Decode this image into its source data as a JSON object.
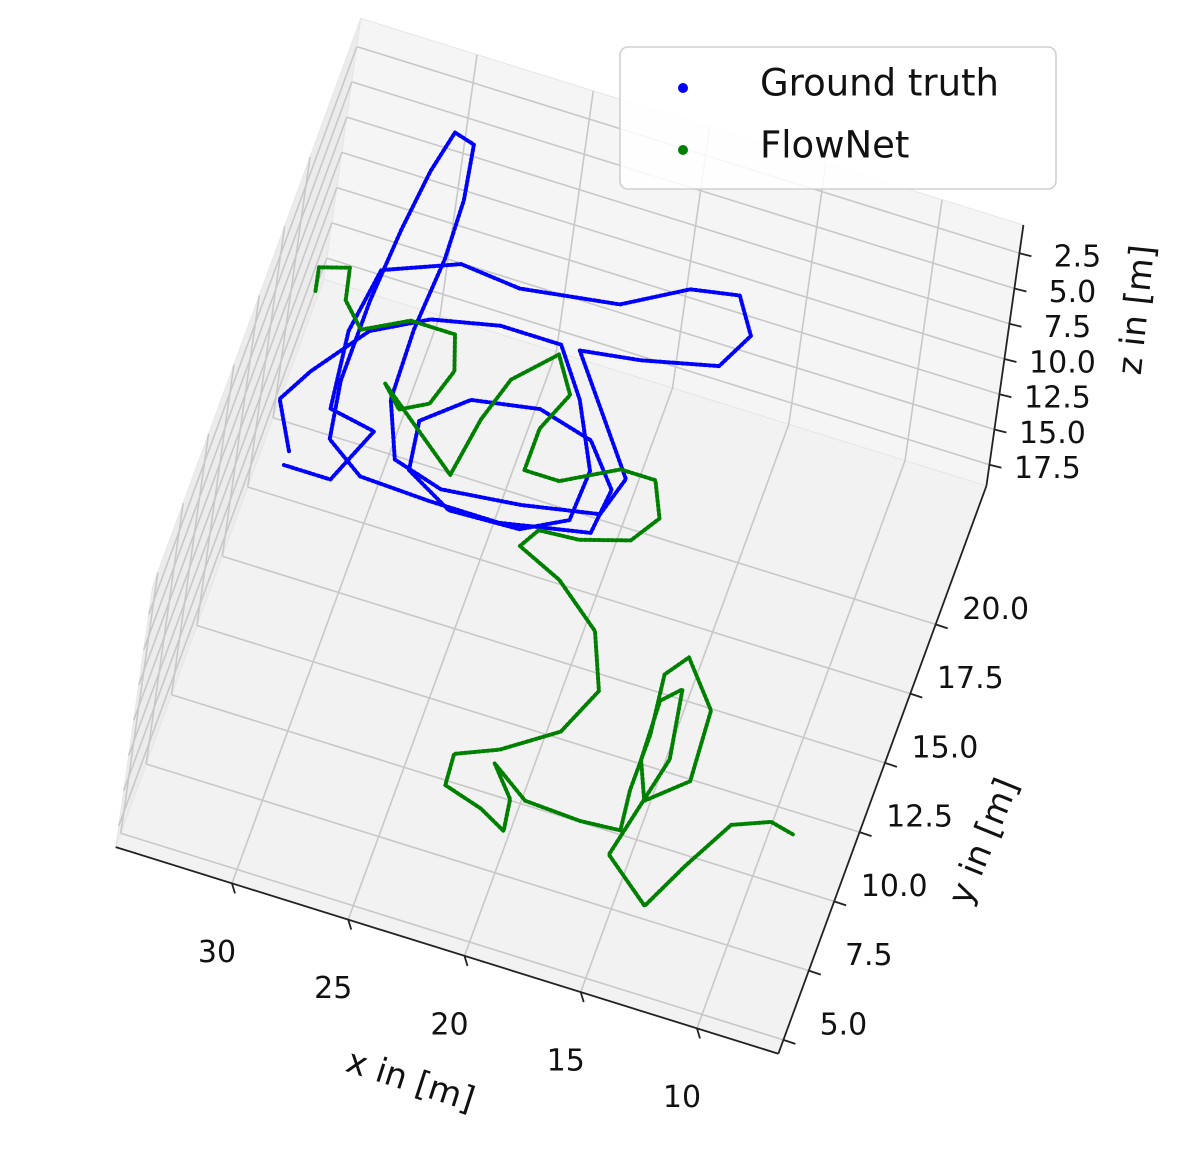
{
  "chart_data": {
    "type": "scatter3d",
    "xlabel": "x in [m]",
    "ylabel": "y in [m]",
    "zlabel": "z in [m]",
    "xlim": [
      6.5,
      35
    ],
    "ylim": [
      4.5,
      25
    ],
    "zlim": [
      19,
      0.5
    ],
    "xticks": [
      10,
      15,
      20,
      25,
      30
    ],
    "yticks": [
      {
        "value": 5,
        "label": "5.0"
      },
      7.5,
      {
        "value": 10,
        "label": "10.0"
      },
      12.5,
      {
        "value": 15,
        "label": "15.0"
      },
      17.5,
      {
        "value": 20,
        "label": "20.0"
      }
    ],
    "zticks": [
      2.5,
      {
        "value": 5,
        "label": "5.0"
      },
      7.5,
      {
        "value": 10,
        "label": "10.0"
      },
      12.5,
      {
        "value": 15,
        "label": "15.0"
      },
      17.5
    ],
    "grid": true,
    "legend": "upper right",
    "series": [
      {
        "name": "Ground truth",
        "color": "#0000ff",
        "x": [
          32.2,
          33.3,
          32.5,
          30.8,
          28.6,
          25.8,
          23.2,
          21.7,
          20.3,
          20.4,
          22.2,
          25.2,
          27.3,
          27.6,
          25.9,
          23.1,
          20.7,
          19.2,
          19.4,
          23.1,
          26.1,
          29.1,
          30.8,
          31.2,
          31.2,
          31.0,
          30.7,
          30.3,
          29.4,
          29.0,
          28.9,
          29.1,
          29.0,
          28.0,
          25.8,
          22.5,
          19.3,
          18.8,
          22.4,
          19.9,
          16.8,
          16.0,
          17.0,
          19.0,
          21.5,
          25.6,
          28.2,
          31.2,
          31.6,
          31.2,
          29.2,
          30.2,
          32.2
        ],
        "y": [
          12.4,
          14.0,
          15.2,
          17.1,
          18.1,
          18.6,
          18.6,
          17.0,
          14.8,
          13.0,
          12.2,
          12.1,
          13.0,
          14.7,
          15.9,
          16.3,
          15.8,
          14.4,
          12.8,
          12.2,
          12.2,
          12.3,
          13.2,
          15.2,
          18.1,
          20.7,
          22.9,
          24.4,
          24.2,
          22.3,
          20.2,
          17.6,
          15.1,
          13.2,
          12.7,
          13.0,
          13.5,
          14.9,
          18.6,
          18.9,
          19.5,
          20.8,
          22.0,
          21.7,
          20.5,
          20.0,
          20.2,
          19.2,
          16.9,
          14.2,
          13.9,
          11.9,
          11.9
        ],
        "z": [
          5,
          5,
          5,
          5,
          5,
          5,
          5,
          5,
          5,
          5,
          5,
          5,
          5,
          5,
          5,
          5,
          5,
          5,
          5,
          5,
          5,
          5,
          5,
          5,
          5,
          5,
          5,
          5,
          5,
          5,
          5,
          5,
          5,
          5,
          5,
          5,
          5,
          5,
          5,
          5,
          5,
          5,
          5,
          5,
          5,
          5,
          5,
          5,
          5,
          5,
          5,
          5,
          5
        ]
      },
      {
        "name": "FlowNet",
        "color": "#008000",
        "x": [
          34.3,
          34.5,
          33.3,
          33.0,
          32.0,
          30.2,
          28.3,
          27.8,
          28.3,
          29.4,
          30.3,
          26.5,
          26.1,
          25.5,
          24.0,
          23.0,
          23.7,
          23.7,
          22.2,
          20.0,
          18.5,
          17.8,
          18.6,
          20.6,
          22.3,
          22.8,
          20.8,
          18.7,
          17.7,
          18.6,
          20.7,
          22.4,
          22.3,
          20.6,
          19.4,
          19.6,
          20.7,
          19.0,
          16.6,
          14.9,
          15.1,
          15.1,
          15.4,
          14.7,
          13.1,
          12.9,
          14.4,
          15.1,
          15.2,
          14.5,
          14.0,
          15.0,
          12.9,
          11.9,
          10.7,
          9.2,
          8.1
        ],
        "y": [
          21.2,
          22.0,
          22.3,
          21.2,
          20.4,
          21.2,
          21.2,
          20.0,
          18.7,
          18.2,
          18.9,
          16.6,
          18.7,
          20.3,
          21.6,
          20.4,
          19.0,
          17.5,
          17.5,
          18.5,
          18.5,
          17.3,
          16.3,
          15.8,
          15.7,
          15.0,
          14.3,
          13.0,
          11.1,
          9.4,
          8.2,
          7.6,
          6.5,
          6.1,
          5.6,
          6.7,
          7.7,
          6.8,
          6.7,
          6.8,
          8.2,
          10.2,
          12.3,
          13.1,
          11.6,
          9.1,
          8.0,
          9.3,
          11.4,
          12.0,
          9.6,
          5.9,
          4.6,
          6.3,
          8.1,
          8.6,
          8.4
        ],
        "z": [
          12,
          12,
          12,
          12,
          12,
          12,
          12,
          12,
          12,
          12,
          12,
          12,
          12,
          12,
          12,
          12,
          12,
          12,
          12,
          12,
          12,
          12,
          12,
          12,
          12,
          12,
          12,
          12,
          12,
          12,
          12,
          12,
          12,
          12,
          12,
          12,
          12,
          12,
          12,
          12,
          12,
          12,
          12,
          12,
          12,
          12,
          12,
          12,
          12,
          12,
          12,
          12,
          12,
          12,
          12,
          12,
          12
        ]
      }
    ]
  }
}
